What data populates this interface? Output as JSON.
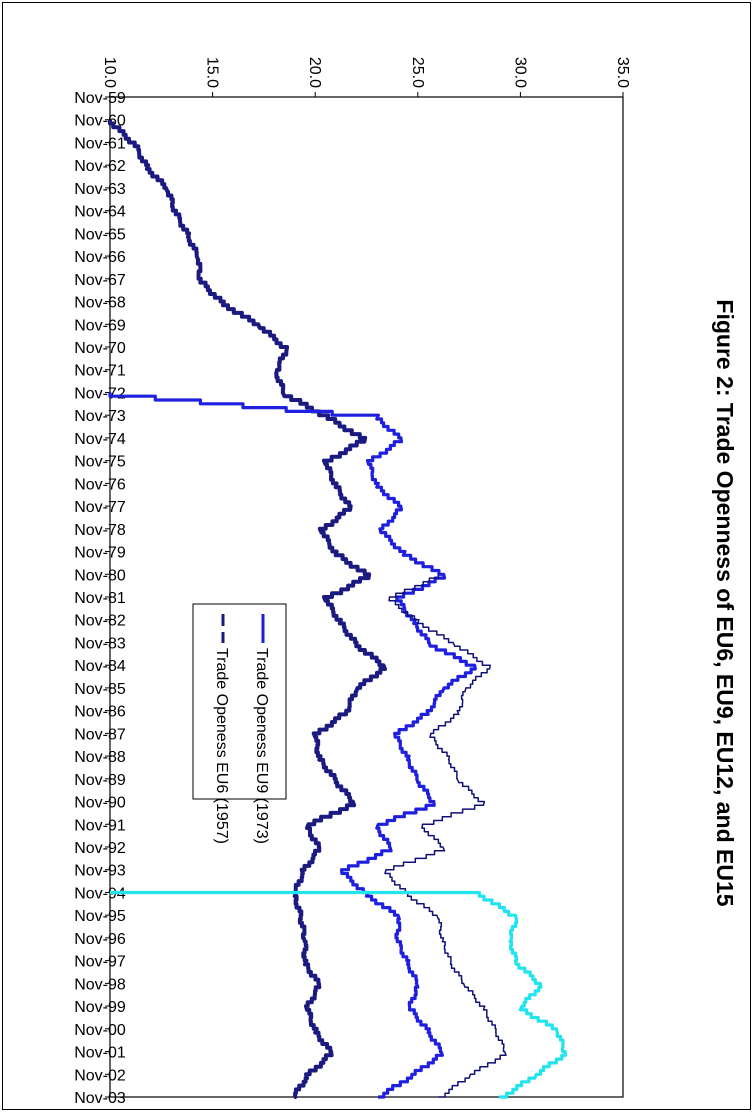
{
  "chart_data": {
    "type": "line",
    "title": "Figure 2: Trade Openness of EU6, EU9, EU12, and EU15",
    "xlabel": "",
    "ylabel": "",
    "ylim": [
      10.0,
      35.0
    ],
    "y_ticks": [
      "10.0",
      "15.0",
      "20.0",
      "25.0",
      "30.0",
      "35.0"
    ],
    "x_ticks": [
      "Nov-59",
      "Nov-60",
      "Nov-61",
      "Nov-62",
      "Nov-63",
      "Nov-64",
      "Nov-65",
      "Nov-66",
      "Nov-67",
      "Nov-68",
      "Nov-69",
      "Nov-70",
      "Nov-71",
      "Nov-72",
      "Nov-73",
      "Nov-74",
      "Nov-75",
      "Nov-76",
      "Nov-77",
      "Nov-78",
      "Nov-79",
      "Nov-80",
      "Nov-81",
      "Nov-82",
      "Nov-83",
      "Nov-84",
      "Nov-85",
      "Nov-86",
      "Nov-87",
      "Nov-88",
      "Nov-89",
      "Nov-90",
      "Nov-91",
      "Nov-92",
      "Nov-93",
      "Nov-94",
      "Nov-95",
      "Nov-96",
      "Nov-97",
      "Nov-98",
      "Nov-99",
      "Nov-00",
      "Nov-01",
      "Nov-02",
      "Nov-03"
    ],
    "grid": false,
    "legend_position": "center",
    "series": [
      {
        "name": "Trade Openess EU6  (1957)",
        "color": "#1a1a80",
        "style": "dashed",
        "points": [
          [
            "Nov-60",
            10.0
          ],
          [
            "Nov-61",
            11.2
          ],
          [
            "Nov-62",
            11.8
          ],
          [
            "Nov-63",
            12.8
          ],
          [
            "Nov-64",
            13.2
          ],
          [
            "Nov-65",
            13.8
          ],
          [
            "Nov-66",
            14.3
          ],
          [
            "Nov-67",
            14.4
          ],
          [
            "Nov-68",
            15.5
          ],
          [
            "Nov-69",
            17.3
          ],
          [
            "Nov-70",
            18.6
          ],
          [
            "Nov-71",
            18.1
          ],
          [
            "Nov-72",
            18.5
          ],
          [
            "Nov-73",
            20.6
          ],
          [
            "Nov-74",
            22.4
          ],
          [
            "Nov-75",
            20.5
          ],
          [
            "Nov-76",
            21.0
          ],
          [
            "Nov-77",
            21.7
          ],
          [
            "Nov-78",
            20.3
          ],
          [
            "Nov-79",
            21.0
          ],
          [
            "Nov-80",
            22.6
          ],
          [
            "Nov-81",
            20.5
          ],
          [
            "Nov-82",
            21.2
          ],
          [
            "Nov-83",
            22.0
          ],
          [
            "Nov-84",
            23.4
          ],
          [
            "Nov-85",
            22.0
          ],
          [
            "Nov-86",
            21.5
          ],
          [
            "Nov-87",
            20.0
          ],
          [
            "Nov-88",
            20.2
          ],
          [
            "Nov-89",
            21.0
          ],
          [
            "Nov-90",
            21.9
          ],
          [
            "Nov-91",
            19.6
          ],
          [
            "Nov-92",
            20.2
          ],
          [
            "Nov-93",
            19.4
          ],
          [
            "Nov-94",
            19.0
          ],
          [
            "Nov-95",
            19.3
          ],
          [
            "Nov-96",
            19.5
          ],
          [
            "Nov-97",
            19.5
          ],
          [
            "Nov-98",
            20.2
          ],
          [
            "Nov-99",
            19.6
          ],
          [
            "Nov-00",
            20.0
          ],
          [
            "Nov-01",
            20.8
          ],
          [
            "Nov-02",
            19.6
          ],
          [
            "Nov-03",
            18.9
          ]
        ]
      },
      {
        "name": "Trade Openess EU9  (1973)",
        "color": "#1f1fe0",
        "style": "solid",
        "points": [
          [
            "Nov-72",
            10.0
          ],
          [
            "Nov-73",
            23.0
          ],
          [
            "Nov-74",
            24.2
          ],
          [
            "Nov-75",
            22.6
          ],
          [
            "Nov-76",
            23.0
          ],
          [
            "Nov-77",
            24.2
          ],
          [
            "Nov-78",
            23.2
          ],
          [
            "Nov-79",
            24.3
          ],
          [
            "Nov-80",
            26.3
          ],
          [
            "Nov-81",
            24.0
          ],
          [
            "Nov-82",
            24.8
          ],
          [
            "Nov-83",
            25.6
          ],
          [
            "Nov-84",
            27.8
          ],
          [
            "Nov-85",
            26.2
          ],
          [
            "Nov-86",
            25.5
          ],
          [
            "Nov-87",
            23.9
          ],
          [
            "Nov-88",
            24.5
          ],
          [
            "Nov-89",
            25.0
          ],
          [
            "Nov-90",
            25.8
          ],
          [
            "Nov-91",
            23.0
          ],
          [
            "Nov-92",
            23.7
          ],
          [
            "Nov-93",
            21.3
          ],
          [
            "Nov-94",
            22.5
          ],
          [
            "Nov-95",
            24.1
          ],
          [
            "Nov-96",
            24.0
          ],
          [
            "Nov-97",
            24.5
          ],
          [
            "Nov-98",
            25.0
          ],
          [
            "Nov-99",
            24.6
          ],
          [
            "Nov-00",
            25.5
          ],
          [
            "Nov-01",
            26.2
          ],
          [
            "Nov-02",
            24.7
          ],
          [
            "Nov-03",
            23.0
          ]
        ]
      },
      {
        "name": "",
        "color": "#10107a",
        "style": "thin",
        "points": [
          [
            "Nov-80",
            26.0
          ],
          [
            "Nov-81",
            23.6
          ],
          [
            "Nov-82",
            25.0
          ],
          [
            "Nov-83",
            26.8
          ],
          [
            "Nov-84",
            28.5
          ],
          [
            "Nov-85",
            27.3
          ],
          [
            "Nov-86",
            27.0
          ],
          [
            "Nov-87",
            25.6
          ],
          [
            "Nov-88",
            26.5
          ],
          [
            "Nov-89",
            27.0
          ],
          [
            "Nov-90",
            28.2
          ],
          [
            "Nov-91",
            25.2
          ],
          [
            "Nov-92",
            26.3
          ],
          [
            "Nov-93",
            23.4
          ],
          [
            "Nov-94",
            24.5
          ],
          [
            "Nov-95",
            26.0
          ],
          [
            "Nov-96",
            26.2
          ],
          [
            "Nov-97",
            26.6
          ],
          [
            "Nov-98",
            27.3
          ],
          [
            "Nov-99",
            28.2
          ],
          [
            "Nov-00",
            28.8
          ],
          [
            "Nov-01",
            29.3
          ],
          [
            "Nov-02",
            27.5
          ],
          [
            "Nov-03",
            26.0
          ]
        ]
      },
      {
        "name": "",
        "color": "#22e4ee",
        "style": "solid",
        "points": [
          [
            "Nov-94",
            10.0
          ],
          [
            "Nov-94",
            28.0
          ],
          [
            "Nov-95",
            29.8
          ],
          [
            "Nov-96",
            29.5
          ],
          [
            "Nov-97",
            29.8
          ],
          [
            "Nov-98",
            31.0
          ],
          [
            "Nov-99",
            30.0
          ],
          [
            "Nov-00",
            31.8
          ],
          [
            "Nov-01",
            32.2
          ],
          [
            "Nov-02",
            30.7
          ],
          [
            "Nov-03",
            29.0
          ]
        ]
      }
    ]
  }
}
